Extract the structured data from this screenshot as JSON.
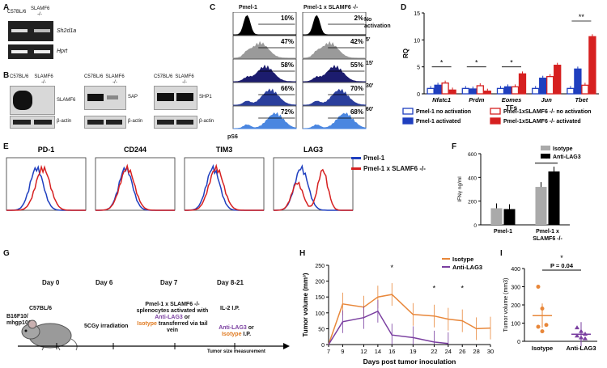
{
  "panels": [
    "A",
    "B",
    "C",
    "D",
    "E",
    "F",
    "G",
    "H",
    "I"
  ],
  "A": {
    "lanes": [
      "C57BL/6",
      "SLAMF6 -/-"
    ],
    "genes": [
      "Sh2d1a",
      "Hprt"
    ]
  },
  "B": {
    "blot1": {
      "lanes": [
        "C57BL/6",
        "SLAMF6 -/-"
      ],
      "target": "SLAMF6",
      "control": "β-actin"
    },
    "blot2": {
      "lanes": [
        "C57BL/6",
        "SLAMF6 -/-"
      ],
      "target": "SAP",
      "control": "β-actin"
    },
    "blot3": {
      "lanes": [
        "C57BL/6",
        "SLAMF6 -/-"
      ],
      "target": "SHP1",
      "control": "β-actin"
    }
  },
  "C": {
    "col1": "Pmel-1",
    "col2": "Pmel-1 x SLAMF6 -/-",
    "rows": [
      {
        "time": "No activation",
        "p1": "10%",
        "p2": "2%",
        "color": "#000000"
      },
      {
        "time": "5'",
        "p1": "47%",
        "p2": "42%",
        "color": "#9a9a9a"
      },
      {
        "time": "15'",
        "p1": "58%",
        "p2": "55%",
        "color": "#1c1c6e"
      },
      {
        "time": "30'",
        "p1": "66%",
        "p2": "70%",
        "color": "#2a3e9c"
      },
      {
        "time": "60'",
        "p1": "72%",
        "p2": "68%",
        "color": "#4a86e0"
      }
    ],
    "xlabel": "pS6"
  },
  "D": {
    "ylabel": "RQ",
    "xlabel": "TFs",
    "legend": [
      "Pmel-1 no activation",
      "Pmel-1 activated",
      "Pmel-1xSLAMF6 -/- no activation",
      "Pmel-1xSLAMF6 -/- activated"
    ],
    "sig": [
      "*",
      "*",
      "*",
      "**"
    ]
  },
  "E": {
    "markers": [
      "PD-1",
      "CD244",
      "TIM3",
      "LAG3"
    ],
    "legend": [
      "Pmel-1",
      "Pmel-1 x SLAMF6 -/-"
    ]
  },
  "F": {
    "ylabel": "IFNγ ng/ml",
    "sig": "*",
    "legend": [
      "Isotype",
      "Anti-LAG3"
    ]
  },
  "G": {
    "days": [
      "Day 0",
      "Day 6",
      "Day 7",
      "Day 8-21"
    ],
    "mouse": "C57BL/6",
    "tumor": "B16F10/ mhgp100",
    "day6": "5CGy irradiation",
    "day7a": "Pmel-1 x SLAMF6 -/- splenocytes activated with",
    "day7b": "Anti-LAG3",
    "day7c": "or",
    "day7d": "Isotype",
    "day7e": "transferred via tail vein",
    "il2": "IL-2 I.P.",
    "ip1": "Anti-LAG3",
    "ip2": "or",
    "ip3": "Isotype",
    "ip4": "I.P.",
    "measure": "Tumor size measurement"
  },
  "H": {
    "ylabel": "Tumor volume (mm³)",
    "xlabel": "Days post tumor inoculation",
    "legend": [
      "Isotype",
      "Anti-LAG3"
    ],
    "sig": [
      "*",
      "*",
      "*"
    ]
  },
  "I": {
    "ylabel": "Tumor volume (mm3)",
    "pvalue": "P = 0.04",
    "sig": "*"
  },
  "chart_data": [
    {
      "type": "bar",
      "panel": "D",
      "categories": [
        "Nfatc1",
        "Prdm",
        "Eomes",
        "Jun",
        "Tbet"
      ],
      "series": [
        {
          "name": "Pmel-1 no activation",
          "color": "#ffffff",
          "edge": "#1f3fbf",
          "values": [
            1.0,
            1.0,
            1.0,
            1.0,
            1.0
          ]
        },
        {
          "name": "Pmel-1 activated",
          "color": "#1f3fbf",
          "values": [
            1.6,
            0.9,
            1.3,
            2.9,
            4.6
          ]
        },
        {
          "name": "Pmel-1xSLAMF6 -/- no activation",
          "color": "#ffffff",
          "edge": "#d62020",
          "values": [
            2.0,
            1.5,
            1.3,
            3.2,
            1.6
          ]
        },
        {
          "name": "Pmel-1xSLAMF6 -/- activated",
          "color": "#d62020",
          "values": [
            0.7,
            0.5,
            3.7,
            5.3,
            10.6
          ]
        }
      ],
      "ylim": [
        0,
        15
      ],
      "yticks": [
        0,
        5,
        10,
        15
      ]
    },
    {
      "type": "bar",
      "panel": "F",
      "categories": [
        "Pmel-1",
        "Pmel-1 x SLAMF6 -/-"
      ],
      "series": [
        {
          "name": "Isotype",
          "color": "#aaaaaa",
          "values": [
            140,
            320
          ]
        },
        {
          "name": "Anti-LAG3",
          "color": "#000000",
          "values": [
            133,
            450
          ]
        }
      ],
      "ylim": [
        0,
        600
      ],
      "yticks": [
        0,
        200,
        400,
        600
      ]
    },
    {
      "type": "line",
      "panel": "H",
      "x": [
        7,
        9,
        12,
        14,
        16,
        19,
        22,
        24,
        26,
        28,
        30
      ],
      "series": [
        {
          "name": "Isotype",
          "color": "#e8873a",
          "values": [
            0,
            128,
            118,
            150,
            158,
            95,
            90,
            80,
            75,
            50,
            52
          ]
        },
        {
          "name": "Anti-LAG3",
          "color": "#7a3fa0",
          "values": [
            0,
            72,
            85,
            105,
            30,
            22,
            8,
            3,
            null,
            null,
            null
          ]
        }
      ],
      "ylim": [
        0,
        250
      ],
      "yticks": [
        0,
        50,
        100,
        150,
        200,
        250
      ],
      "xticks": [
        7,
        9,
        12,
        14,
        16,
        19,
        22,
        24,
        26,
        28,
        30
      ]
    },
    {
      "type": "scatter",
      "panel": "I",
      "categories": [
        "Isotype",
        "Anti-LAG3"
      ],
      "series": [
        {
          "name": "Isotype",
          "color": "#e8873a",
          "values": [
            300,
            180,
            90,
            80,
            55
          ]
        },
        {
          "name": "Anti-LAG3",
          "color": "#7a3fa0",
          "values": [
            75,
            55,
            40,
            30,
            20,
            15
          ]
        }
      ],
      "ylim": [
        0,
        400
      ],
      "yticks": [
        0,
        100,
        200,
        300,
        400
      ]
    }
  ]
}
